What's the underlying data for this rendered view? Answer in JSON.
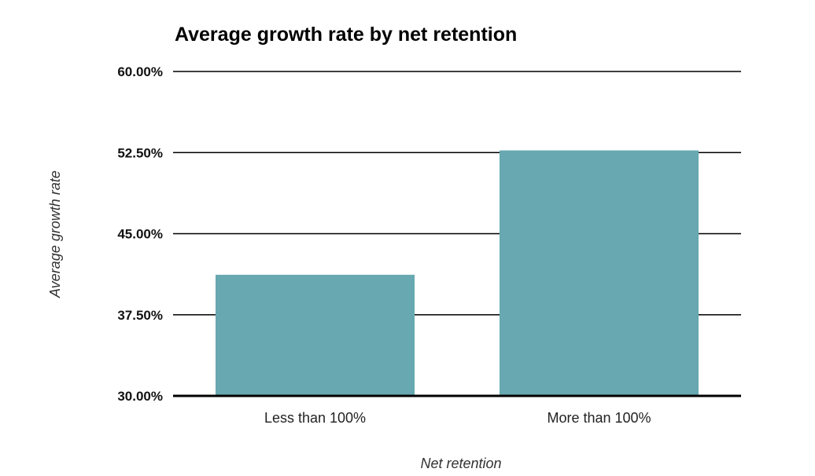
{
  "chart_data": {
    "type": "bar",
    "title": "Average growth rate by net retention",
    "xlabel": "Net retention",
    "ylabel": "Average growth rate",
    "categories": [
      "Less than 100%",
      "More than 100%"
    ],
    "values": [
      41.2,
      52.7
    ],
    "ylim": [
      30,
      60
    ],
    "yticks": [
      30,
      37.5,
      45,
      52.5,
      60
    ],
    "ytick_labels": [
      "30.00%",
      "37.50%",
      "45.00%",
      "52.50%",
      "60.00%"
    ],
    "grid": true,
    "legend": "none",
    "colors": {
      "bar": "#67a8b1",
      "grid": "#000000",
      "text": "#000000"
    }
  }
}
